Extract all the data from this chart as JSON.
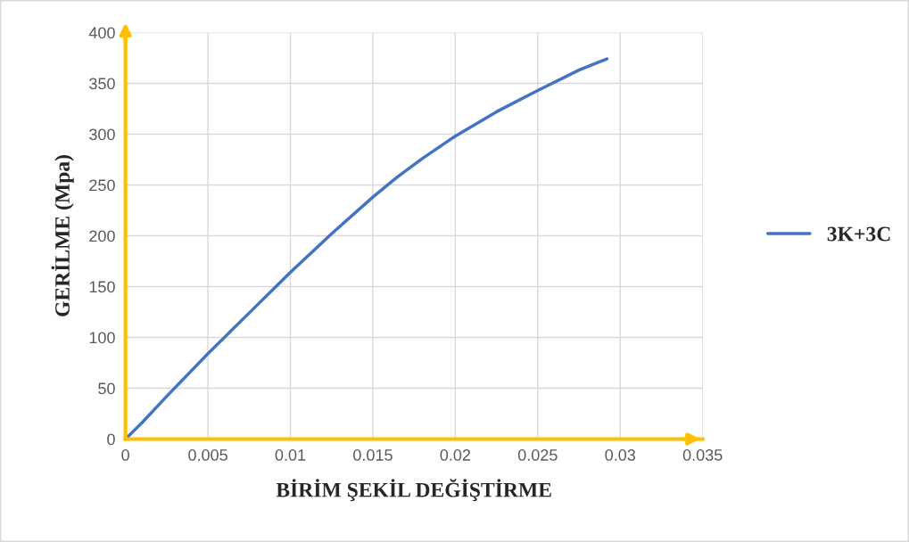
{
  "chart_data": {
    "type": "line",
    "xlabel": "BİRİM ŞEKİL DEĞİŞTİRME",
    "ylabel": "GERİLME (Mpa)",
    "series": [
      {
        "name": "3K+3C",
        "color": "#4472c4",
        "x": [
          0,
          0.001,
          0.0025,
          0.005,
          0.0075,
          0.01,
          0.0125,
          0.015,
          0.0165,
          0.018,
          0.02,
          0.0225,
          0.025,
          0.0275,
          0.0287,
          0.0292
        ],
        "values": [
          0,
          16,
          42,
          84,
          124,
          164,
          202,
          238,
          258,
          276,
          298,
          322,
          343,
          363,
          371,
          374
        ]
      }
    ],
    "xlim": [
      0,
      0.035
    ],
    "xticks": [
      0,
      0.005,
      0.01,
      0.015,
      0.02,
      0.025,
      0.03,
      0.035
    ],
    "ylim": [
      0,
      400
    ],
    "yticks": [
      0,
      50,
      100,
      150,
      200,
      250,
      300,
      350,
      400
    ],
    "grid": true,
    "legend": "right",
    "marker": "none",
    "line_style": "solid"
  }
}
